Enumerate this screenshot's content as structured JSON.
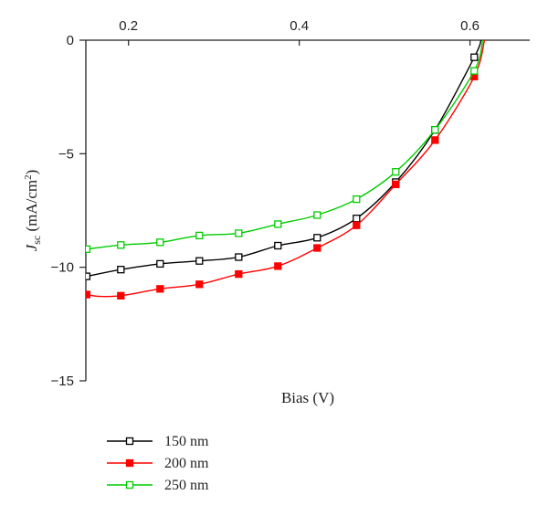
{
  "chart_data": {
    "type": "line",
    "title": "",
    "xlabel": "Bias (V)",
    "ylabel": {
      "symbol": "J",
      "subscript": "sc",
      "units_prefix": " (mA/cm",
      "units_sup": "2",
      "units_suffix": ")"
    },
    "xlim": [
      0.15,
      0.67
    ],
    "ylim": [
      -15,
      0
    ],
    "xticks": [
      0.2,
      0.4,
      0.6
    ],
    "xtick_labels": [
      "0.2",
      "0.4",
      "0.6"
    ],
    "yticks": [
      0,
      -5,
      -10,
      -15
    ],
    "ytick_labels": [
      "0",
      "−5",
      "−10",
      "−15"
    ],
    "x_axis_position": "top",
    "grid": false,
    "legend_position": "bottom-left, below plot",
    "series": [
      {
        "name": "150 nm",
        "color": "#000000",
        "marker": "open-square",
        "points": [
          [
            0.151,
            -10.4
          ],
          [
            0.191,
            -10.1
          ],
          [
            0.237,
            -9.85
          ],
          [
            0.283,
            -9.72
          ],
          [
            0.329,
            -9.55
          ],
          [
            0.375,
            -9.05
          ],
          [
            0.421,
            -8.7
          ],
          [
            0.467,
            -7.85
          ],
          [
            0.513,
            -6.25
          ],
          [
            0.559,
            -3.95
          ],
          [
            0.605,
            -0.75
          ]
        ],
        "curve": [
          [
            0.151,
            -10.4
          ],
          [
            0.191,
            -10.1
          ],
          [
            0.237,
            -9.85
          ],
          [
            0.283,
            -9.72
          ],
          [
            0.329,
            -9.55
          ],
          [
            0.375,
            -9.05
          ],
          [
            0.421,
            -8.7
          ],
          [
            0.467,
            -7.85
          ],
          [
            0.513,
            -6.25
          ],
          [
            0.559,
            -3.95
          ],
          [
            0.605,
            -0.75
          ],
          [
            0.613,
            0.0
          ]
        ]
      },
      {
        "name": "200 nm",
        "color": "#ff0000",
        "marker": "filled-square",
        "points": [
          [
            0.151,
            -11.2
          ],
          [
            0.191,
            -11.25
          ],
          [
            0.237,
            -10.95
          ],
          [
            0.283,
            -10.75
          ],
          [
            0.329,
            -10.3
          ],
          [
            0.375,
            -9.95
          ],
          [
            0.421,
            -9.15
          ],
          [
            0.467,
            -8.15
          ],
          [
            0.513,
            -6.35
          ],
          [
            0.559,
            -4.4
          ],
          [
            0.605,
            -1.6
          ]
        ],
        "curve": [
          [
            0.151,
            -11.2
          ],
          [
            0.165,
            -11.28
          ],
          [
            0.191,
            -11.25
          ],
          [
            0.237,
            -10.95
          ],
          [
            0.283,
            -10.75
          ],
          [
            0.329,
            -10.3
          ],
          [
            0.375,
            -9.95
          ],
          [
            0.421,
            -9.15
          ],
          [
            0.467,
            -8.15
          ],
          [
            0.513,
            -6.35
          ],
          [
            0.559,
            -4.4
          ],
          [
            0.605,
            -1.6
          ],
          [
            0.617,
            0.0
          ]
        ]
      },
      {
        "name": "250 nm",
        "color": "#00cc00",
        "marker": "open-square",
        "points": [
          [
            0.151,
            -9.2
          ],
          [
            0.191,
            -9.02
          ],
          [
            0.237,
            -8.9
          ],
          [
            0.283,
            -8.6
          ],
          [
            0.329,
            -8.5
          ],
          [
            0.375,
            -8.1
          ],
          [
            0.421,
            -7.7
          ],
          [
            0.467,
            -7.0
          ],
          [
            0.513,
            -5.8
          ],
          [
            0.559,
            -3.95
          ],
          [
            0.605,
            -1.35
          ]
        ],
        "curve": [
          [
            0.151,
            -9.2
          ],
          [
            0.191,
            -9.02
          ],
          [
            0.237,
            -8.9
          ],
          [
            0.283,
            -8.6
          ],
          [
            0.329,
            -8.5
          ],
          [
            0.375,
            -8.1
          ],
          [
            0.421,
            -7.7
          ],
          [
            0.467,
            -7.0
          ],
          [
            0.513,
            -5.8
          ],
          [
            0.559,
            -3.95
          ],
          [
            0.605,
            -1.35
          ],
          [
            0.615,
            0.0
          ]
        ]
      }
    ]
  }
}
